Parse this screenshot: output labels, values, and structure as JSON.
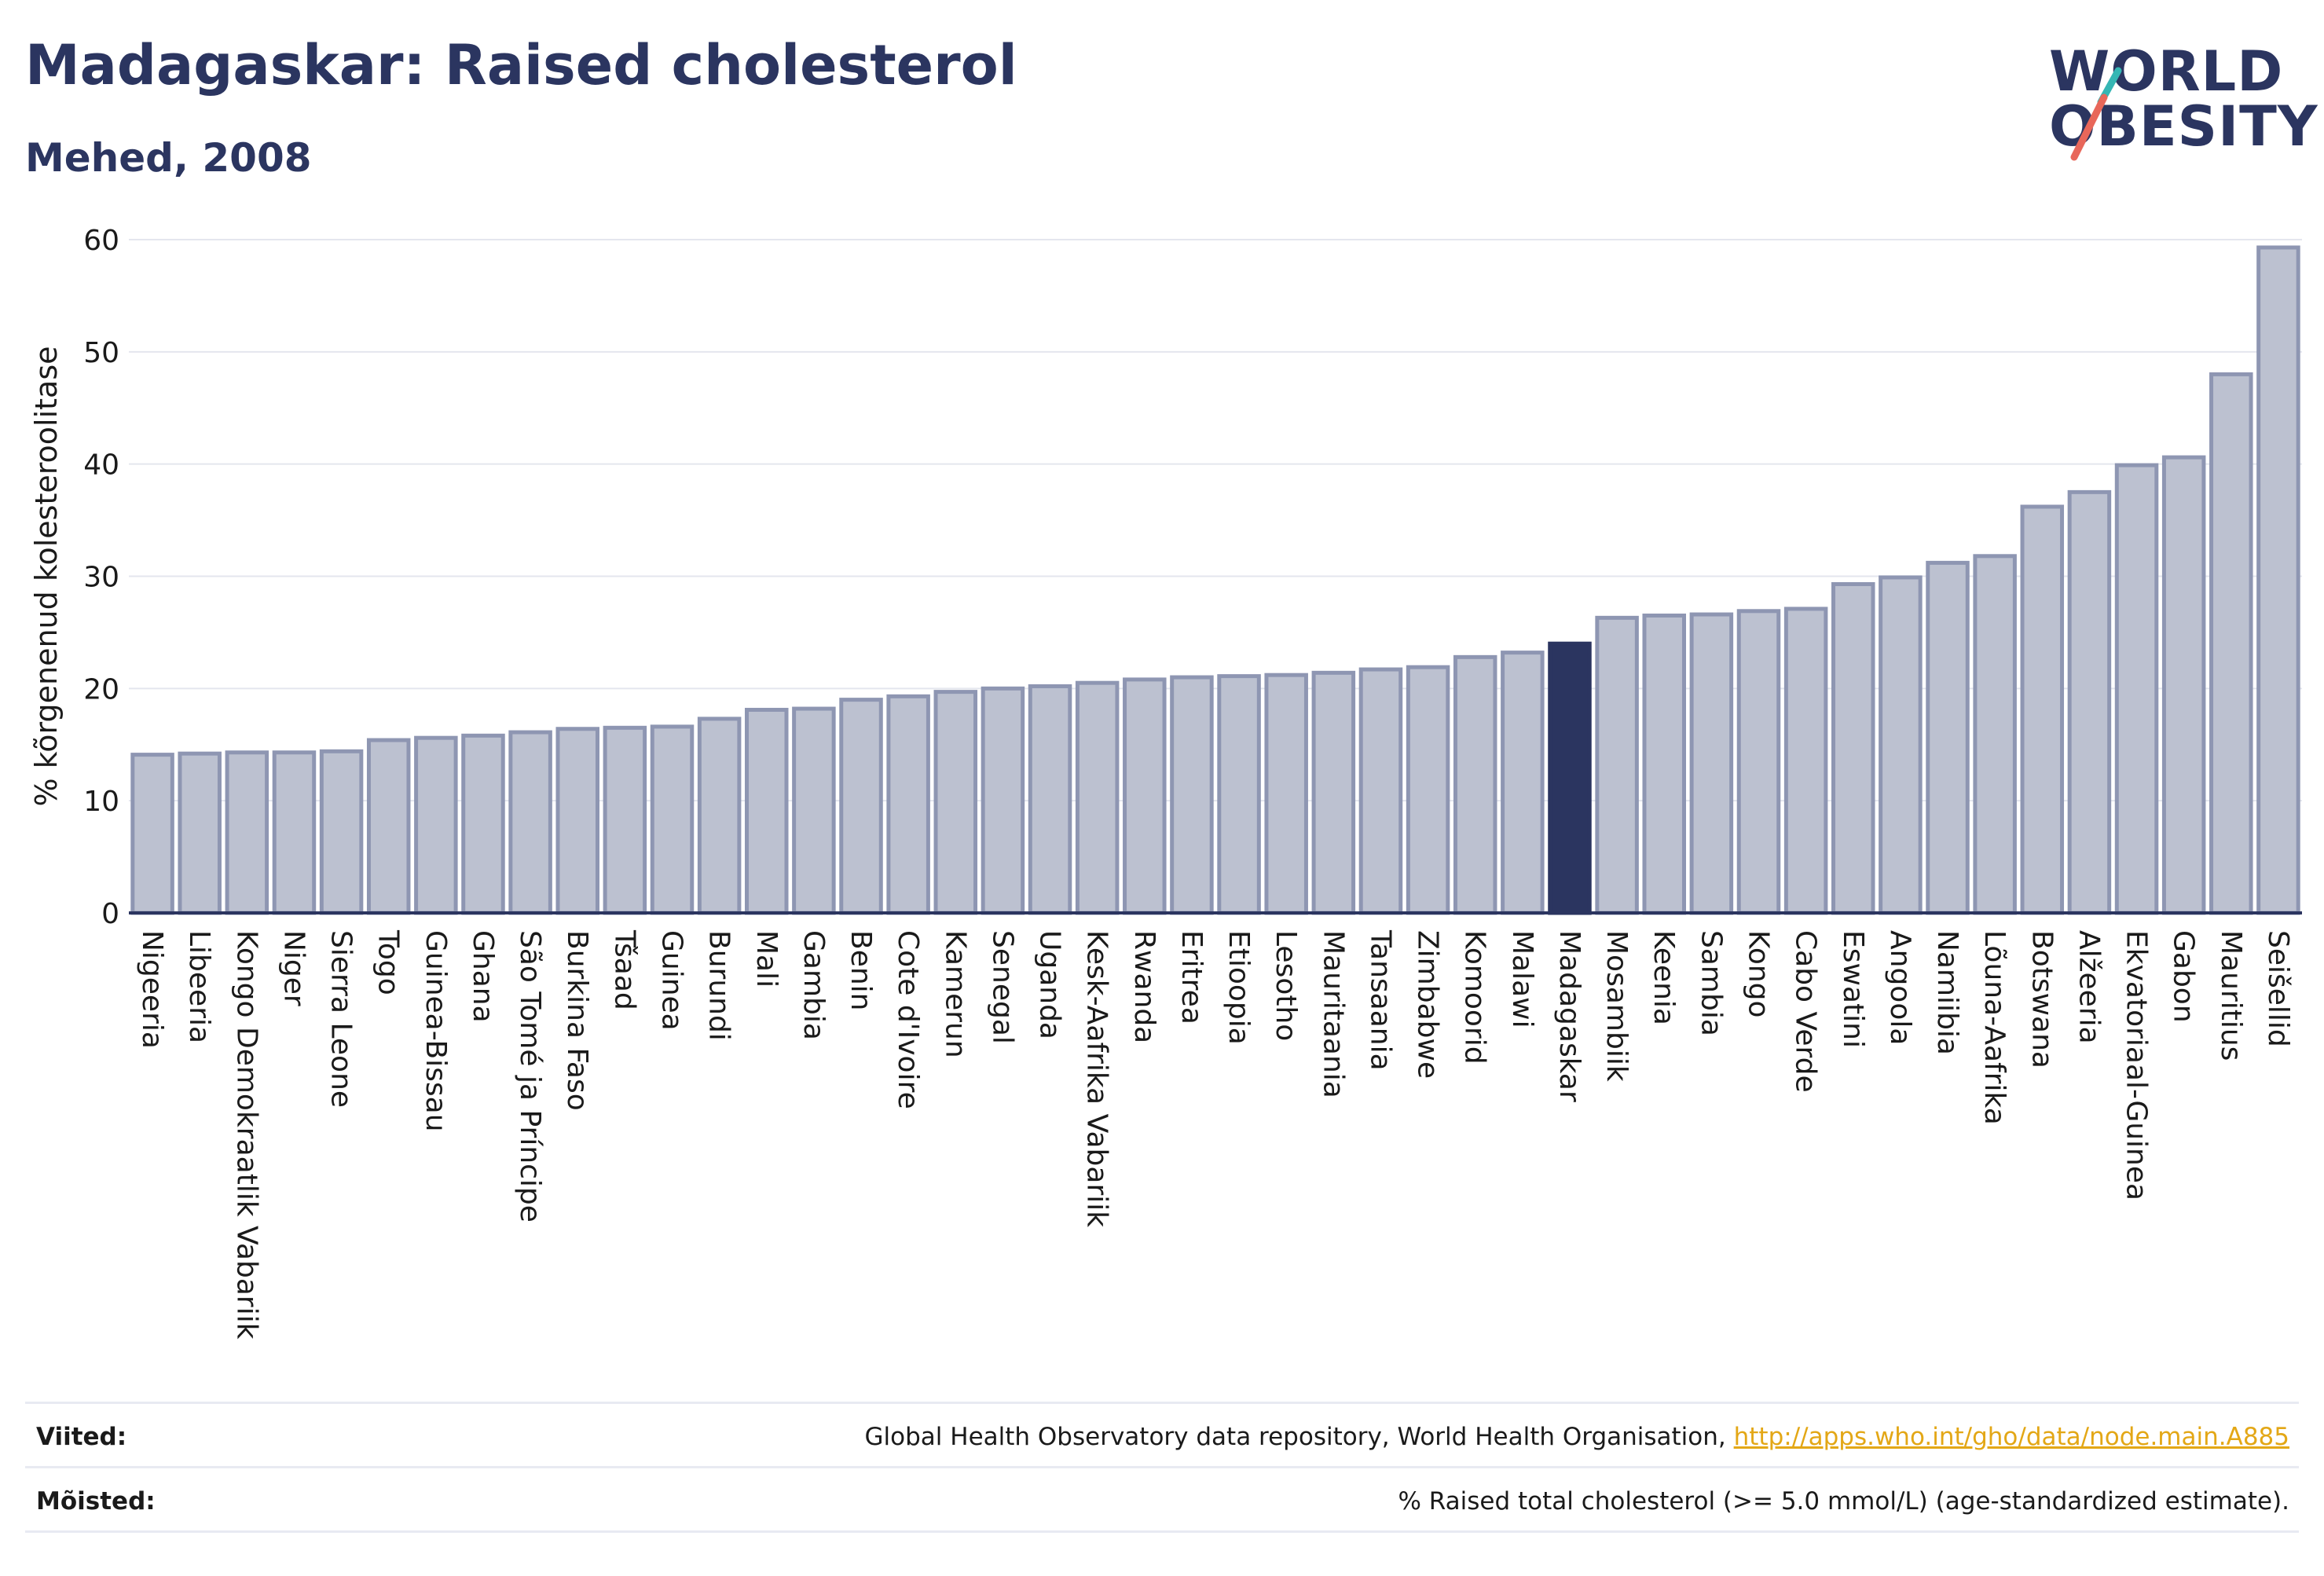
{
  "header": {
    "title": "Madagaskar: Raised cholesterol",
    "subtitle": "Mehed, 2008"
  },
  "logo": {
    "line1": "WORLD",
    "line2": "OBESITY",
    "accent_colors": [
      "#35b6b4",
      "#e8675a"
    ]
  },
  "colors": {
    "bar": "#bcc1d0",
    "bar_border": "#8e96b2",
    "highlight": "#2b3560",
    "axis_text": "#1a1a1a",
    "grid": "#e4e6ee",
    "link": "#e3a716"
  },
  "chart_data": {
    "type": "bar",
    "ylabel": "% kõrgenenud kolesteroolitase",
    "xlabel": "",
    "ylim": [
      0,
      60
    ],
    "yticks": [
      0,
      10,
      20,
      30,
      40,
      50,
      60
    ],
    "grid": true,
    "highlight": "Madagaskar",
    "categories": [
      "Nigeeria",
      "Libeeria",
      "Kongo Demokraatlik Vabariik",
      "Niger",
      "Sierra Leone",
      "Togo",
      "Guinea-Bissau",
      "Ghana",
      "São Tomé ja Príncipe",
      "Burkina Faso",
      "Tšaad",
      "Guinea",
      "Burundi",
      "Mali",
      "Gambia",
      "Benin",
      "Cote d'Ivoire",
      "Kamerun",
      "Senegal",
      "Uganda",
      "Kesk-Aafrika Vabariik",
      "Rwanda",
      "Eritrea",
      "Etioopia",
      "Lesotho",
      "Mauritaania",
      "Tansaania",
      "Zimbabwe",
      "Komoorid",
      "Malawi",
      "Madagaskar",
      "Mosambiik",
      "Keenia",
      "Sambia",
      "Kongo",
      "Cabo Verde",
      "Eswatini",
      "Angoola",
      "Namiibia",
      "Lõuna-Aafrika",
      "Botswana",
      "Alžeeria",
      "Ekvatoriaal-Guinea",
      "Gabon",
      "Mauritius",
      "Seišellid"
    ],
    "values": [
      14.1,
      14.2,
      14.3,
      14.3,
      14.4,
      15.4,
      15.6,
      15.8,
      16.1,
      16.4,
      16.5,
      16.6,
      17.3,
      18.1,
      18.2,
      19.0,
      19.3,
      19.7,
      20.0,
      20.2,
      20.5,
      20.8,
      21.0,
      21.1,
      21.2,
      21.4,
      21.7,
      21.9,
      22.8,
      23.2,
      24.0,
      26.3,
      26.5,
      26.6,
      26.9,
      27.1,
      29.3,
      29.9,
      31.2,
      31.8,
      36.2,
      37.5,
      39.9,
      40.6,
      48.0,
      59.3
    ]
  },
  "footer": {
    "sources_label": "Viited:",
    "sources_text": "Global Health Observatory data repository, World Health Organisation, ",
    "sources_link": "http://apps.who.int/gho/data/node.main.A885",
    "definitions_label": "Mõisted:",
    "definitions_text": "% Raised total cholesterol (>= 5.0 mmol/L) (age-standardized estimate)."
  }
}
